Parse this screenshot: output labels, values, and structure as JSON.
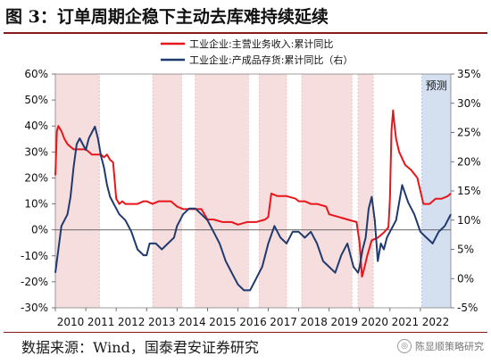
{
  "header": {
    "title": "图 3：订单周期企稳下主动去库难持续延续"
  },
  "footer": {
    "source": "数据来源：Wind，国泰君安证券研究",
    "watermark": "陈显顺策略研究",
    "watermark_icon": "wechat-icon"
  },
  "chart_data": {
    "type": "line",
    "title": "",
    "x_ticks": [
      "2010",
      "2011",
      "2012",
      "2013",
      "2014",
      "2015",
      "2016",
      "2017",
      "2018",
      "2019",
      "2020",
      "2021",
      "2022"
    ],
    "left_axis": {
      "ticks": [
        "-30%",
        "-20%",
        "-10%",
        "0%",
        "10%",
        "20%",
        "30%",
        "40%",
        "50%",
        "60%"
      ],
      "min": -30,
      "max": 60
    },
    "right_axis": {
      "ticks": [
        "-5%",
        "0%",
        "5%",
        "10%",
        "15%",
        "20%",
        "25%",
        "30%",
        "35%"
      ],
      "min": -5,
      "max": 35
    },
    "annotation": "预测",
    "shaded_periods": [
      {
        "start": 2010.0,
        "end": 2011.45,
        "kind": "destock"
      },
      {
        "start": 2013.2,
        "end": 2014.15,
        "kind": "destock"
      },
      {
        "start": 2014.6,
        "end": 2016.35,
        "kind": "destock"
      },
      {
        "start": 2016.7,
        "end": 2017.6,
        "kind": "destock"
      },
      {
        "start": 2018.1,
        "end": 2019.75,
        "kind": "destock"
      },
      {
        "start": 2019.95,
        "end": 2020.45,
        "kind": "destock"
      },
      {
        "start": 2022.05,
        "end": 2023.0,
        "kind": "forecast"
      }
    ],
    "colors": {
      "revenue": "#e8161b",
      "inventory": "#1f3a6e",
      "destock_fill": "#f6dede",
      "forecast_fill": "#d4dff0"
    },
    "series": [
      {
        "name": "工业企业:主营业务收入:累计同比",
        "axis": "left",
        "color": "#e8161b",
        "x": [
          2010.0,
          2010.05,
          2010.1,
          2010.2,
          2010.3,
          2010.4,
          2010.5,
          2010.6,
          2010.7,
          2010.8,
          2010.9,
          2011.0,
          2011.1,
          2011.2,
          2011.3,
          2011.4,
          2011.5,
          2011.6,
          2011.7,
          2011.8,
          2011.9,
          2012.0,
          2012.1,
          2012.2,
          2012.3,
          2012.5,
          2012.7,
          2012.9,
          2013.0,
          2013.2,
          2013.4,
          2013.6,
          2013.8,
          2014.0,
          2014.2,
          2014.4,
          2014.6,
          2014.8,
          2015.0,
          2015.2,
          2015.5,
          2015.8,
          2016.0,
          2016.3,
          2016.6,
          2016.9,
          2017.0,
          2017.1,
          2017.3,
          2017.6,
          2017.9,
          2018.0,
          2018.2,
          2018.4,
          2018.6,
          2018.9,
          2019.0,
          2019.3,
          2019.6,
          2019.9,
          2020.0,
          2020.08,
          2020.15,
          2020.25,
          2020.4,
          2020.6,
          2020.8,
          2020.95,
          2021.0,
          2021.05,
          2021.1,
          2021.15,
          2021.2,
          2021.3,
          2021.5,
          2021.7,
          2021.9,
          2022.0,
          2022.1,
          2022.3,
          2022.5,
          2022.7,
          2022.9,
          2023.0
        ],
        "values": [
          21,
          38,
          40,
          38,
          35,
          33,
          32,
          31,
          31,
          31,
          31,
          31,
          30,
          29,
          29,
          29,
          29,
          28,
          29,
          27,
          26,
          12,
          10,
          11,
          10,
          10,
          10,
          11,
          11,
          10,
          11,
          11,
          11,
          9,
          8,
          8,
          8,
          8,
          4,
          4,
          3,
          3,
          2,
          3,
          3,
          4,
          5,
          14,
          13,
          13,
          12,
          11,
          11,
          10,
          10,
          9,
          6,
          5,
          4,
          3,
          -5,
          -18,
          -15,
          -10,
          -4,
          -3,
          -1,
          1,
          12,
          38,
          46,
          40,
          35,
          30,
          25,
          23,
          20,
          15,
          10,
          10,
          12,
          12,
          13,
          14
        ]
      },
      {
        "name": "工业企业:产成品存货:累计同比（右）",
        "axis": "right",
        "color": "#1f3a6e",
        "x": [
          2010.0,
          2010.1,
          2010.2,
          2010.3,
          2010.4,
          2010.5,
          2010.6,
          2010.7,
          2010.8,
          2010.9,
          2011.0,
          2011.1,
          2011.2,
          2011.3,
          2011.4,
          2011.5,
          2011.6,
          2011.7,
          2011.8,
          2011.9,
          2012.0,
          2012.1,
          2012.3,
          2012.5,
          2012.7,
          2012.9,
          2013.0,
          2013.1,
          2013.3,
          2013.5,
          2013.7,
          2013.9,
          2014.0,
          2014.2,
          2014.4,
          2014.6,
          2014.8,
          2015.0,
          2015.2,
          2015.4,
          2015.6,
          2015.8,
          2016.0,
          2016.2,
          2016.4,
          2016.6,
          2016.8,
          2016.9,
          2017.0,
          2017.2,
          2017.4,
          2017.6,
          2017.8,
          2018.0,
          2018.2,
          2018.4,
          2018.6,
          2018.8,
          2019.0,
          2019.2,
          2019.4,
          2019.6,
          2019.8,
          2019.95,
          2020.0,
          2020.1,
          2020.2,
          2020.3,
          2020.4,
          2020.5,
          2020.6,
          2020.7,
          2020.8,
          2020.9,
          2021.0,
          2021.2,
          2021.4,
          2021.6,
          2021.8,
          2022.0,
          2022.2,
          2022.4,
          2022.6,
          2022.8,
          2023.0
        ],
        "values": [
          1,
          5,
          9,
          10,
          11,
          14,
          19,
          23,
          24,
          23,
          22,
          24,
          25,
          26,
          24,
          21,
          19,
          16,
          14,
          13,
          12,
          11,
          10,
          8,
          5,
          4,
          4,
          6,
          6,
          5,
          6,
          7,
          9,
          11,
          12,
          12,
          11,
          10,
          8,
          6,
          3,
          1,
          -1,
          -2,
          -2,
          0,
          2,
          4,
          6,
          9,
          7,
          6,
          8,
          8,
          7,
          8,
          6,
          3,
          2,
          1,
          4,
          6,
          2,
          1,
          2,
          5,
          7,
          12,
          14,
          10,
          3,
          6,
          5,
          7,
          8,
          10,
          16,
          13,
          11,
          8,
          7,
          6,
          8,
          9,
          11
        ]
      }
    ]
  }
}
